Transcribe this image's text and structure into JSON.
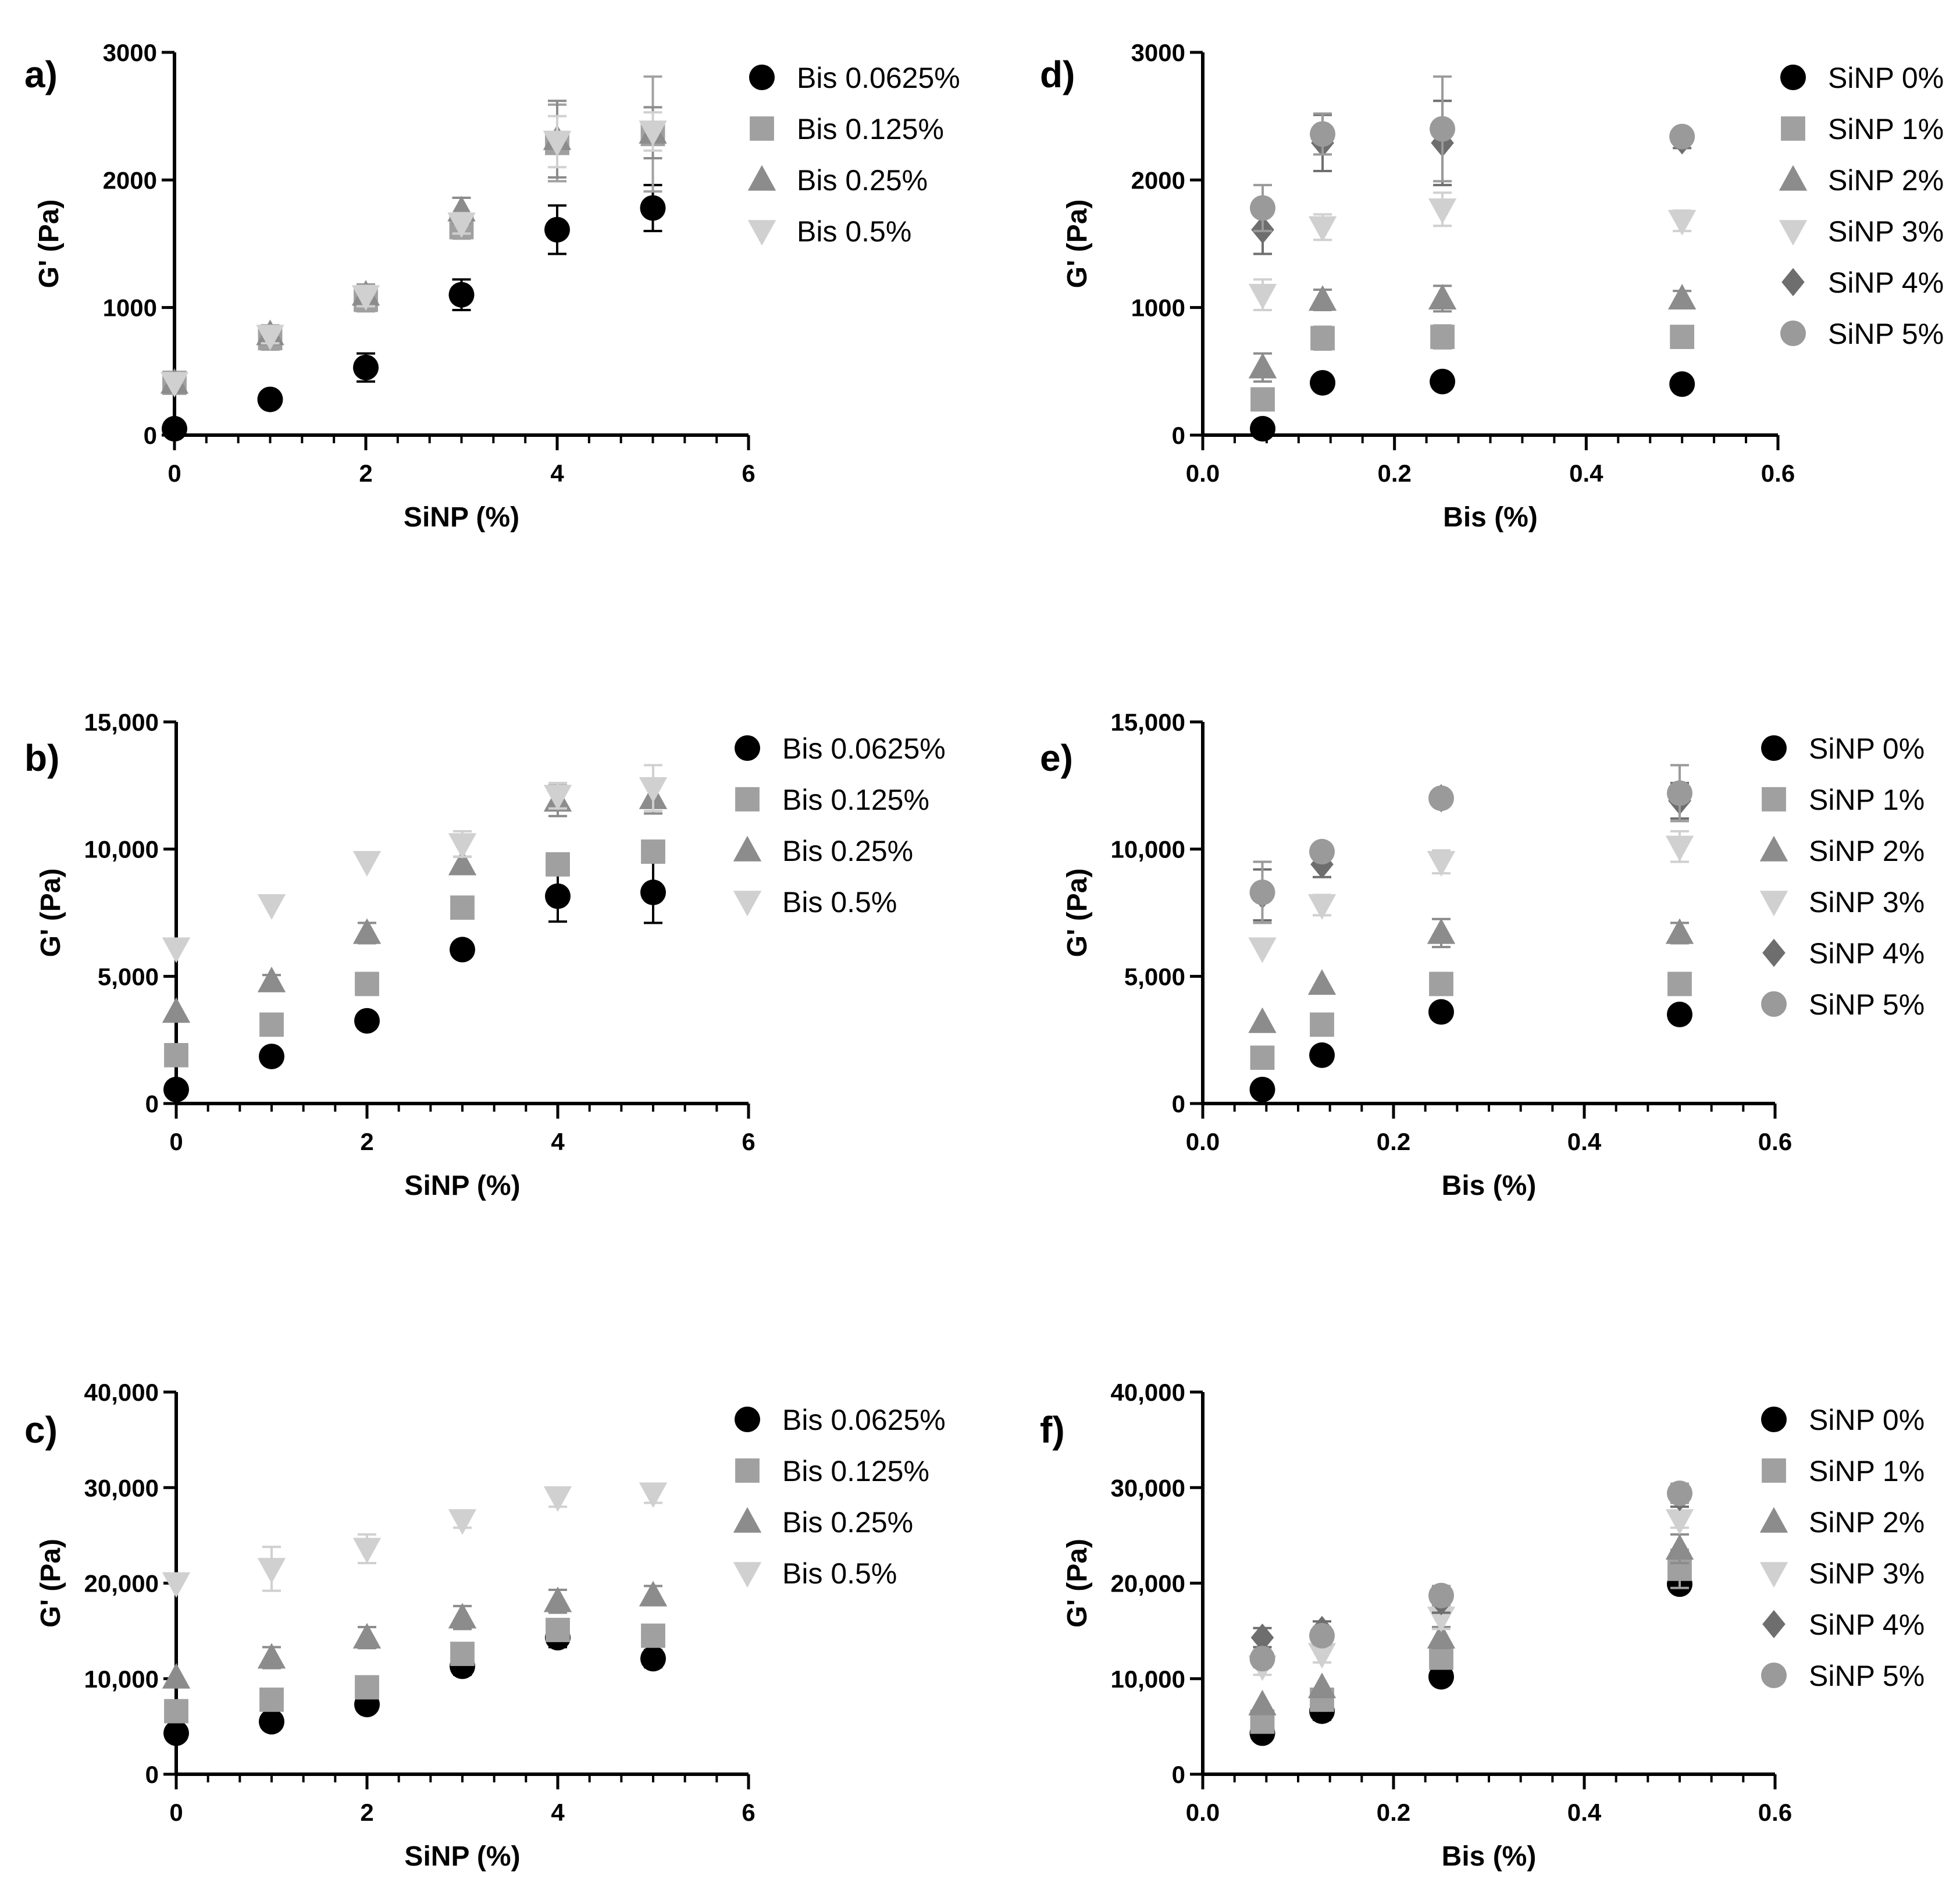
{
  "colors": {
    "s0": "#000000",
    "s1": "#a0a0a0",
    "s2": "#8c8c8c",
    "s3": "#d0d0d0",
    "s4": "#6e6e6e",
    "s5": "#9a9a9a"
  },
  "chart_data": [
    {
      "id": "a",
      "panel_label": "a)",
      "type": "scatter",
      "xlabel": "SiNP (%)",
      "ylabel": "G' (Pa)",
      "xlim": [
        0,
        6
      ],
      "ylim": [
        0,
        3000
      ],
      "xticks": [
        0,
        2,
        4,
        6
      ],
      "xtick_labels": [
        "0",
        "2",
        "4",
        "6"
      ],
      "yticks": [
        0,
        1000,
        2000,
        3000
      ],
      "ytick_labels": [
        "0",
        "1000",
        "2000",
        "3000"
      ],
      "x_minor": 5,
      "series": [
        {
          "name": "Bis 0.0625%",
          "marker": "circle",
          "color_key": "s0",
          "x": [
            0,
            1,
            2,
            3,
            4,
            5
          ],
          "y": [
            50,
            280,
            530,
            1100,
            1610,
            1780
          ],
          "err": [
            0,
            0,
            110,
            120,
            190,
            180
          ]
        },
        {
          "name": "Bis 0.125%",
          "marker": "square",
          "color_key": "s1",
          "x": [
            0,
            1,
            2,
            3,
            4,
            5
          ],
          "y": [
            410,
            760,
            1060,
            1630,
            2290,
            2360
          ],
          "err": [
            0,
            90,
            90,
            90,
            300,
            450
          ]
        },
        {
          "name": "Bis 0.25%",
          "marker": "triangle-up",
          "color_key": "s2",
          "x": [
            0,
            1,
            2,
            3,
            4,
            5
          ],
          "y": [
            410,
            790,
            1100,
            1760,
            2320,
            2370
          ],
          "err": [
            0,
            70,
            80,
            100,
            300,
            200
          ]
        },
        {
          "name": "Bis 0.5%",
          "marker": "triangle-down",
          "color_key": "s3",
          "x": [
            0,
            1,
            2,
            3,
            4,
            5
          ],
          "y": [
            410,
            780,
            1090,
            1660,
            2300,
            2380
          ],
          "err": [
            0,
            60,
            80,
            80,
            200,
            150
          ]
        }
      ]
    },
    {
      "id": "b",
      "panel_label": "b)",
      "type": "scatter",
      "xlabel": "SiNP (%)",
      "ylabel": "G' (Pa)",
      "xlim": [
        0,
        6
      ],
      "ylim": [
        0,
        15000
      ],
      "xticks": [
        0,
        2,
        4,
        6
      ],
      "xtick_labels": [
        "0",
        "2",
        "4",
        "6"
      ],
      "yticks": [
        0,
        5000,
        10000,
        15000
      ],
      "ytick_labels": [
        "0",
        "5,000",
        "10,000",
        "15,000"
      ],
      "x_minor": 5,
      "series": [
        {
          "name": "Bis 0.0625%",
          "marker": "circle",
          "color_key": "s0",
          "x": [
            0,
            1,
            2,
            3,
            4,
            5
          ],
          "y": [
            550,
            1850,
            3250,
            6050,
            8150,
            8300
          ],
          "err": [
            0,
            0,
            0,
            0,
            1000,
            1200
          ]
        },
        {
          "name": "Bis 0.125%",
          "marker": "square",
          "color_key": "s1",
          "x": [
            0,
            1,
            2,
            3,
            4,
            5
          ],
          "y": [
            1900,
            3100,
            4700,
            7700,
            9400,
            9900
          ],
          "err": [
            0,
            0,
            0,
            0,
            400,
            300
          ]
        },
        {
          "name": "Bis 0.25%",
          "marker": "triangle-up",
          "color_key": "s2",
          "x": [
            0,
            1,
            2,
            3,
            4,
            5
          ],
          "y": [
            3600,
            4800,
            6700,
            9400,
            11900,
            12000
          ],
          "err": [
            0,
            250,
            400,
            300,
            600,
            600
          ]
        },
        {
          "name": "Bis 0.5%",
          "marker": "triangle-down",
          "color_key": "s3",
          "x": [
            0,
            1,
            2,
            3,
            4,
            5
          ],
          "y": [
            6100,
            7800,
            9500,
            10200,
            12100,
            12400
          ],
          "err": [
            0,
            0,
            0,
            500,
            500,
            900
          ]
        }
      ]
    },
    {
      "id": "c",
      "panel_label": "c)",
      "type": "scatter",
      "xlabel": "SiNP (%)",
      "ylabel": "G' (Pa)",
      "xlim": [
        0,
        6
      ],
      "ylim": [
        0,
        40000
      ],
      "xticks": [
        0,
        2,
        4,
        6
      ],
      "xtick_labels": [
        "0",
        "2",
        "4",
        "6"
      ],
      "yticks": [
        0,
        10000,
        20000,
        30000,
        40000
      ],
      "ytick_labels": [
        "0",
        "10,000",
        "20,000",
        "30,000",
        "40,000"
      ],
      "x_minor": 5,
      "series": [
        {
          "name": "Bis 0.0625%",
          "marker": "circle",
          "color_key": "s0",
          "x": [
            0,
            1,
            2,
            3,
            4,
            5
          ],
          "y": [
            4300,
            5500,
            7300,
            11300,
            14300,
            12100
          ],
          "err": [
            0,
            0,
            0,
            900,
            1000,
            900
          ]
        },
        {
          "name": "Bis 0.125%",
          "marker": "square",
          "color_key": "s1",
          "x": [
            0,
            1,
            2,
            3,
            4,
            5
          ],
          "y": [
            6600,
            7800,
            9100,
            12600,
            15100,
            14500
          ],
          "err": [
            0,
            0,
            0,
            0,
            0,
            900
          ]
        },
        {
          "name": "Bis 0.25%",
          "marker": "triangle-up",
          "color_key": "s2",
          "x": [
            0,
            1,
            2,
            3,
            4,
            5
          ],
          "y": [
            10100,
            12200,
            14300,
            16400,
            18100,
            18700
          ],
          "err": [
            0,
            1100,
            1100,
            1200,
            1200,
            1000
          ]
        },
        {
          "name": "Bis 0.5%",
          "marker": "triangle-down",
          "color_key": "s3",
          "x": [
            0,
            1,
            2,
            3,
            4,
            5
          ],
          "y": [
            20000,
            21500,
            23600,
            26600,
            29000,
            29400
          ],
          "err": [
            0,
            2300,
            1500,
            800,
            1000,
            1000
          ]
        }
      ]
    },
    {
      "id": "d",
      "panel_label": "d)",
      "type": "scatter",
      "xlabel": "Bis (%)",
      "ylabel": "G' (Pa)",
      "xlim": [
        0,
        0.6
      ],
      "ylim": [
        0,
        3000
      ],
      "xticks": [
        0,
        0.2,
        0.4,
        0.6
      ],
      "xtick_labels": [
        "0.0",
        "0.2",
        "0.4",
        "0.6"
      ],
      "yticks": [
        0,
        1000,
        2000,
        3000
      ],
      "ytick_labels": [
        "0",
        "1000",
        "2000",
        "3000"
      ],
      "x_minor": 5,
      "series": [
        {
          "name": "SiNP 0%",
          "marker": "circle",
          "color_key": "s0",
          "x": [
            0.0625,
            0.125,
            0.25,
            0.5
          ],
          "y": [
            50,
            410,
            420,
            400
          ],
          "err": [
            0,
            0,
            0,
            0
          ]
        },
        {
          "name": "SiNP 1%",
          "marker": "square",
          "color_key": "s1",
          "x": [
            0.0625,
            0.125,
            0.25,
            0.5
          ],
          "y": [
            280,
            760,
            770,
            770
          ],
          "err": [
            0,
            90,
            90,
            50
          ]
        },
        {
          "name": "SiNP 2%",
          "marker": "triangle-up",
          "color_key": "s2",
          "x": [
            0.0625,
            0.125,
            0.25,
            0.5
          ],
          "y": [
            530,
            1060,
            1070,
            1070
          ],
          "err": [
            110,
            80,
            100,
            60
          ]
        },
        {
          "name": "SiNP 3%",
          "marker": "triangle-down",
          "color_key": "s3",
          "x": [
            0.0625,
            0.125,
            0.25,
            0.5
          ],
          "y": [
            1100,
            1630,
            1770,
            1680
          ],
          "err": [
            120,
            100,
            130,
            80
          ]
        },
        {
          "name": "SiNP 4%",
          "marker": "diamond",
          "color_key": "s4",
          "x": [
            0.0625,
            0.125,
            0.25,
            0.5
          ],
          "y": [
            1610,
            2290,
            2290,
            2310
          ],
          "err": [
            190,
            220,
            330,
            60
          ]
        },
        {
          "name": "SiNP 5%",
          "marker": "circle",
          "color_key": "s5",
          "x": [
            0.0625,
            0.125,
            0.25,
            0.5
          ],
          "y": [
            1780,
            2360,
            2400,
            2340
          ],
          "err": [
            180,
            160,
            410,
            40
          ]
        }
      ]
    },
    {
      "id": "e",
      "panel_label": "e)",
      "type": "scatter",
      "xlabel": "Bis (%)",
      "ylabel": "G' (Pa)",
      "xlim": [
        0,
        0.6
      ],
      "ylim": [
        0,
        15000
      ],
      "xticks": [
        0,
        0.2,
        0.4,
        0.6
      ],
      "xtick_labels": [
        "0.0",
        "0.2",
        "0.4",
        "0.6"
      ],
      "yticks": [
        0,
        5000,
        10000,
        15000
      ],
      "ytick_labels": [
        "0",
        "5,000",
        "10,000",
        "15,000"
      ],
      "x_minor": 5,
      "series": [
        {
          "name": "SiNP 0%",
          "marker": "circle",
          "color_key": "s0",
          "x": [
            0.0625,
            0.125,
            0.25,
            0.5
          ],
          "y": [
            550,
            1900,
            3600,
            3500
          ],
          "err": [
            0,
            0,
            0,
            0
          ]
        },
        {
          "name": "SiNP 1%",
          "marker": "square",
          "color_key": "s1",
          "x": [
            0.0625,
            0.125,
            0.25,
            0.5
          ],
          "y": [
            1800,
            3100,
            4700,
            4700
          ],
          "err": [
            0,
            0,
            0,
            0
          ]
        },
        {
          "name": "SiNP 2%",
          "marker": "triangle-up",
          "color_key": "s2",
          "x": [
            0.0625,
            0.125,
            0.25,
            0.5
          ],
          "y": [
            3200,
            4700,
            6700,
            6700
          ],
          "err": [
            0,
            0,
            550,
            400
          ]
        },
        {
          "name": "SiNP 3%",
          "marker": "triangle-down",
          "color_key": "s3",
          "x": [
            0.0625,
            0.125,
            0.25,
            0.5
          ],
          "y": [
            6100,
            7800,
            9500,
            10100
          ],
          "err": [
            0,
            400,
            450,
            600
          ]
        },
        {
          "name": "SiNP 4%",
          "marker": "diamond",
          "color_key": "s4",
          "x": [
            0.0625,
            0.125,
            0.25,
            0.5
          ],
          "y": [
            8200,
            9400,
            12000,
            11900
          ],
          "err": [
            1000,
            500,
            100,
            700
          ]
        },
        {
          "name": "SiNP 5%",
          "marker": "circle",
          "color_key": "s5",
          "x": [
            0.0625,
            0.125,
            0.25,
            0.5
          ],
          "y": [
            8300,
            9900,
            12000,
            12200
          ],
          "err": [
            1200,
            150,
            100,
            1100
          ]
        }
      ]
    },
    {
      "id": "f",
      "panel_label": "f)",
      "type": "scatter",
      "xlabel": "Bis (%)",
      "ylabel": "G' (Pa)",
      "xlim": [
        0,
        0.6
      ],
      "ylim": [
        0,
        40000
      ],
      "xticks": [
        0,
        0.2,
        0.4,
        0.6
      ],
      "xtick_labels": [
        "0.0",
        "0.2",
        "0.4",
        "0.6"
      ],
      "yticks": [
        0,
        10000,
        20000,
        30000,
        40000
      ],
      "ytick_labels": [
        "0",
        "10,000",
        "20,000",
        "30,000",
        "40,000"
      ],
      "x_minor": 5,
      "series": [
        {
          "name": "SiNP 0%",
          "marker": "circle",
          "color_key": "s0",
          "x": [
            0.0625,
            0.125,
            0.25,
            0.5
          ],
          "y": [
            4300,
            6600,
            10200,
            19900
          ],
          "err": [
            0,
            900,
            0,
            0
          ]
        },
        {
          "name": "SiNP 1%",
          "marker": "square",
          "color_key": "s1",
          "x": [
            0.0625,
            0.125,
            0.25,
            0.5
          ],
          "y": [
            5500,
            7800,
            12200,
            21500
          ],
          "err": [
            0,
            0,
            1100,
            2000
          ]
        },
        {
          "name": "SiNP 2%",
          "marker": "triangle-up",
          "color_key": "s2",
          "x": [
            0.0625,
            0.125,
            0.25,
            0.5
          ],
          "y": [
            7300,
            9100,
            14300,
            23600
          ],
          "err": [
            0,
            0,
            1100,
            1500
          ]
        },
        {
          "name": "SiNP 3%",
          "marker": "triangle-down",
          "color_key": "s3",
          "x": [
            0.0625,
            0.125,
            0.25,
            0.5
          ],
          "y": [
            11300,
            12600,
            16400,
            26600
          ],
          "err": [
            900,
            900,
            1200,
            800
          ]
        },
        {
          "name": "SiNP 4%",
          "marker": "diamond",
          "color_key": "s4",
          "x": [
            0.0625,
            0.125,
            0.25,
            0.5
          ],
          "y": [
            14300,
            15100,
            18100,
            29000
          ],
          "err": [
            1000,
            900,
            1200,
            1000
          ]
        },
        {
          "name": "SiNP 5%",
          "marker": "circle",
          "color_key": "s5",
          "x": [
            0.0625,
            0.125,
            0.25,
            0.5
          ],
          "y": [
            12100,
            14500,
            18700,
            29400
          ],
          "err": [
            900,
            900,
            1000,
            1000
          ]
        }
      ]
    }
  ]
}
